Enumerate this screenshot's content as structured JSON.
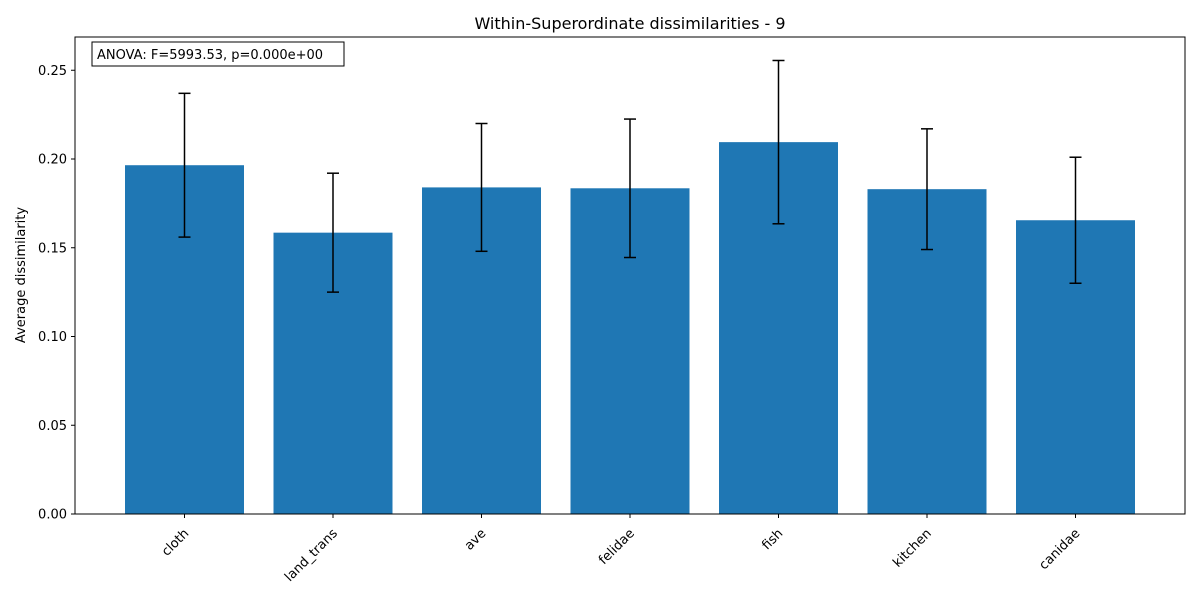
{
  "chart_data": {
    "type": "bar",
    "title": "Within-Superordinate dissimilarities - 9",
    "xlabel": "",
    "ylabel": "Average dissimilarity",
    "categories": [
      "cloth",
      "land_trans",
      "ave",
      "felidae",
      "fish",
      "kitchen",
      "canidae"
    ],
    "values": [
      0.1965,
      0.1585,
      0.184,
      0.1835,
      0.2095,
      0.183,
      0.1655
    ],
    "errors": [
      0.0405,
      0.0335,
      0.036,
      0.039,
      0.046,
      0.034,
      0.0355
    ],
    "ylim": [
      0,
      0.268
    ],
    "yticks": [
      "0.00",
      "0.05",
      "0.10",
      "0.15",
      "0.20",
      "0.25"
    ],
    "ytick_values": [
      0,
      0.05,
      0.1,
      0.15,
      0.2,
      0.25
    ],
    "annotation": "ANOVA: F=5993.53, p=0.000e+00",
    "annotation_placement": "top-left",
    "grid": false,
    "bar_color": "#1f77b4",
    "error_color": "#000000"
  }
}
